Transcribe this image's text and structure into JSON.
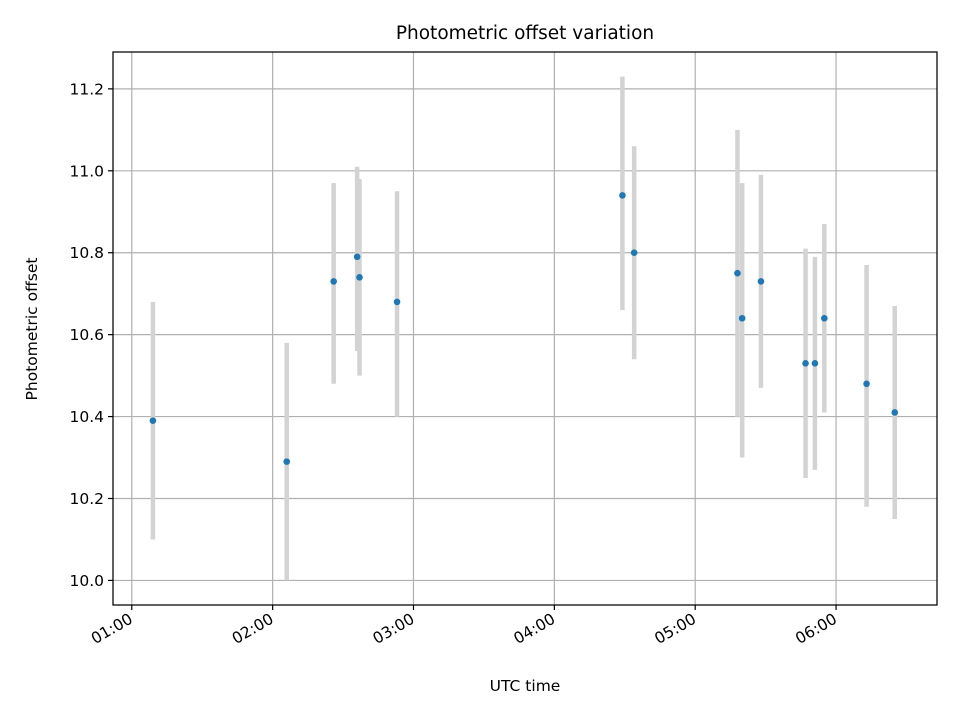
{
  "chart_data": {
    "type": "scatter",
    "title": "Photometric offset variation",
    "xlabel": "UTC time",
    "ylabel": "Photometric offset",
    "x_ticks": [
      "01:00",
      "02:00",
      "03:00",
      "04:00",
      "05:00",
      "06:00"
    ],
    "y_ticks": [
      "10.0",
      "10.2",
      "10.4",
      "10.6",
      "10.8",
      "11.0",
      "11.2"
    ],
    "xlim": [
      "00:52",
      "06:43"
    ],
    "ylim": [
      9.94,
      11.29
    ],
    "grid": true,
    "error_bar_color": "#d3d3d3",
    "point_color": "#1f77b4",
    "points": [
      {
        "x": "01:09",
        "y": 10.39,
        "ylow": 10.1,
        "yhigh": 10.68
      },
      {
        "x": "02:06",
        "y": 10.29,
        "ylow": 10.0,
        "yhigh": 10.58
      },
      {
        "x": "02:26",
        "y": 10.73,
        "ylow": 10.48,
        "yhigh": 10.97
      },
      {
        "x": "02:36",
        "y": 10.79,
        "ylow": 10.56,
        "yhigh": 11.01
      },
      {
        "x": "02:37",
        "y": 10.74,
        "ylow": 10.5,
        "yhigh": 10.98
      },
      {
        "x": "02:53",
        "y": 10.68,
        "ylow": 10.4,
        "yhigh": 10.95
      },
      {
        "x": "04:29",
        "y": 10.94,
        "ylow": 10.66,
        "yhigh": 11.23
      },
      {
        "x": "04:34",
        "y": 10.8,
        "ylow": 10.54,
        "yhigh": 11.06
      },
      {
        "x": "05:18",
        "y": 10.75,
        "ylow": 10.4,
        "yhigh": 11.1
      },
      {
        "x": "05:20",
        "y": 10.64,
        "ylow": 10.3,
        "yhigh": 10.97
      },
      {
        "x": "05:28",
        "y": 10.73,
        "ylow": 10.47,
        "yhigh": 10.99
      },
      {
        "x": "05:47",
        "y": 10.53,
        "ylow": 10.25,
        "yhigh": 10.81
      },
      {
        "x": "05:51",
        "y": 10.53,
        "ylow": 10.27,
        "yhigh": 10.79
      },
      {
        "x": "05:55",
        "y": 10.64,
        "ylow": 10.41,
        "yhigh": 10.87
      },
      {
        "x": "06:13",
        "y": 10.48,
        "ylow": 10.18,
        "yhigh": 10.77
      },
      {
        "x": "06:25",
        "y": 10.41,
        "ylow": 10.15,
        "yhigh": 10.67
      }
    ]
  }
}
